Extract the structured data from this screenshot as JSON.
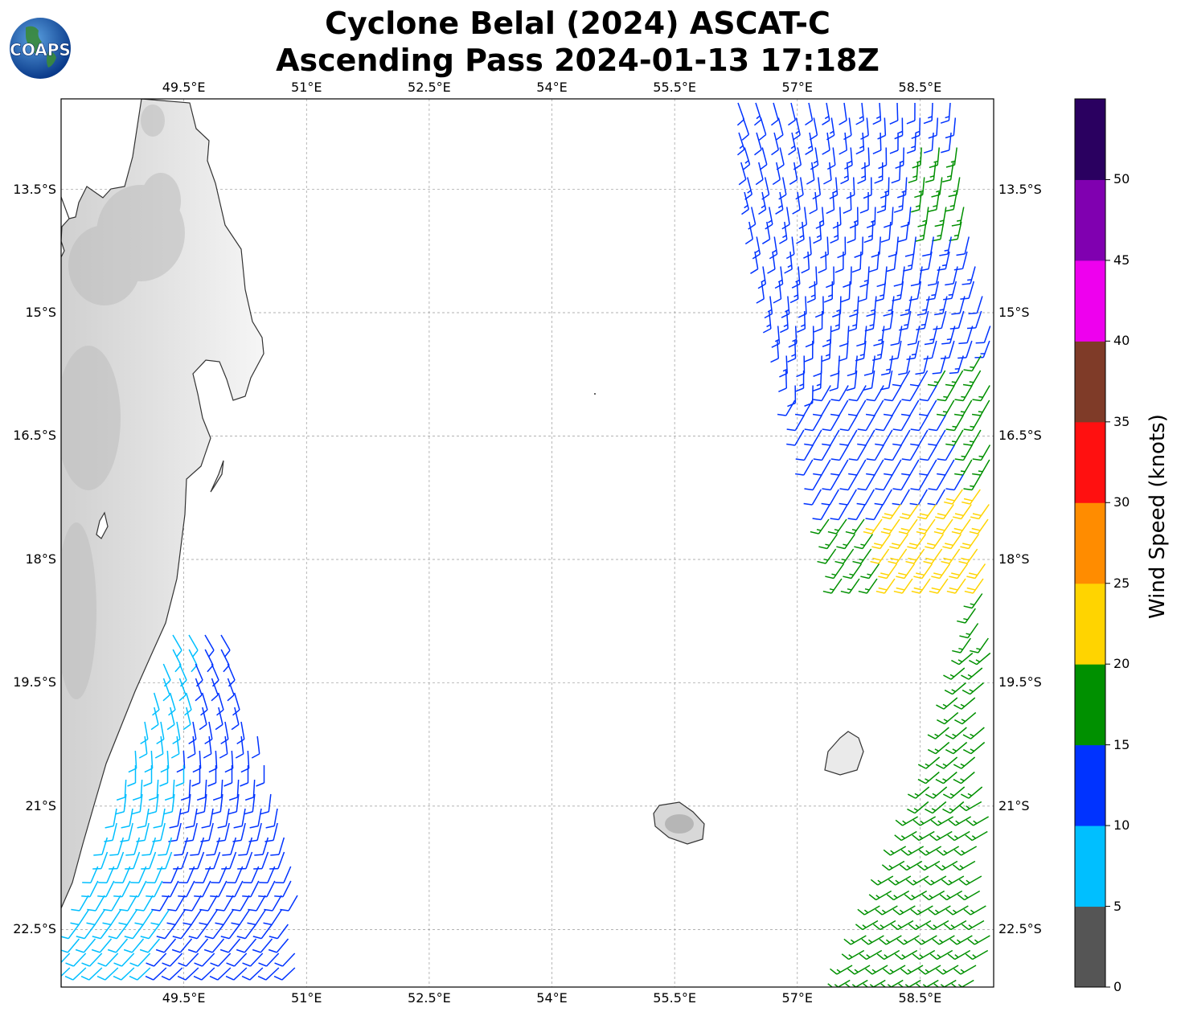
{
  "title": {
    "line1": "Cyclone Belal (2024) ASCAT-C",
    "line2": "Ascending Pass 2024-01-13 17:18Z"
  },
  "logo": {
    "text": "COAPS",
    "icon": "globe-logo-icon"
  },
  "map": {
    "lon_range": [
      48.0,
      59.4
    ],
    "lat_range": [
      -23.2,
      -12.4
    ],
    "lon_ticks": [
      "49.5°E",
      "51°E",
      "52.5°E",
      "54°E",
      "55.5°E",
      "57°E",
      "58.5°E"
    ],
    "lat_ticks": [
      "13.5°S",
      "15°S",
      "16.5°S",
      "18°S",
      "19.5°S",
      "21°S",
      "22.5°S"
    ],
    "land": [
      "Madagascar",
      "Réunion",
      "Mauritius"
    ]
  },
  "colorbar": {
    "label": "Wind Speed (knots)",
    "ticks": [
      "0",
      "5",
      "10",
      "15",
      "20",
      "25",
      "30",
      "35",
      "40",
      "45",
      "50"
    ],
    "colors": [
      "#555555",
      "#00bfff",
      "#0033ff",
      "#009000",
      "#ffd400",
      "#ff8c00",
      "#ff1010",
      "#7f3b28",
      "#ee00ee",
      "#8000b0",
      "#2a0060"
    ]
  }
}
